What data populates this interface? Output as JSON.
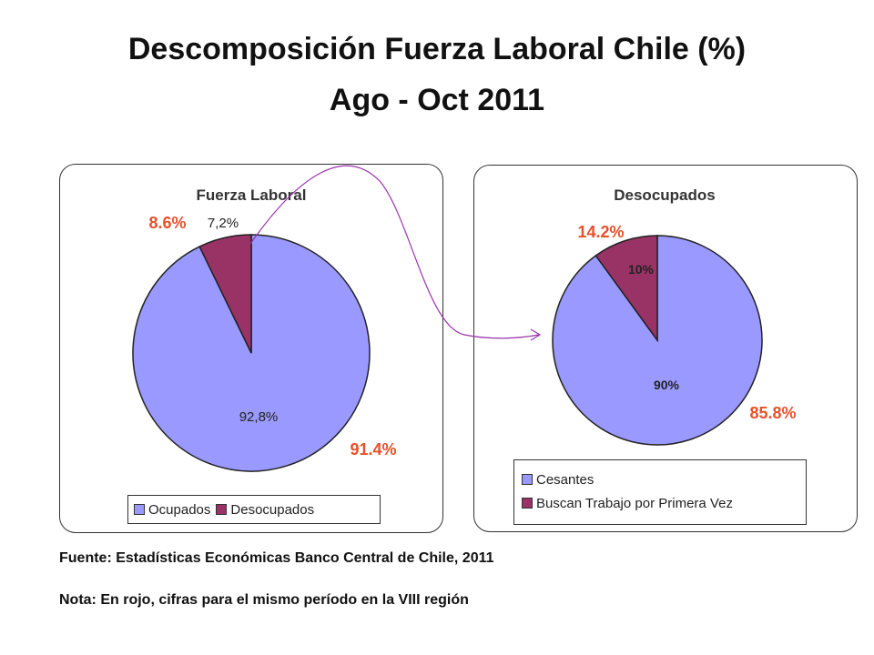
{
  "title": {
    "line1": "Descomposición Fuerza Laboral Chile (%)",
    "line2": "Ago - Oct 2011"
  },
  "colors": {
    "primary_slice": "#9999FF",
    "secondary_slice": "#993366",
    "red_label": "#E8502A",
    "connector": "#9933AA"
  },
  "chart_data": [
    {
      "type": "pie",
      "title": "Fuerza Laboral",
      "categories": [
        "Ocupados",
        "Desocupados"
      ],
      "values": [
        92.8,
        7.2
      ],
      "data_labels": [
        "92,8%",
        "7,2%"
      ],
      "comparison_labels": [
        "91.4%",
        "8.6%"
      ],
      "legend": [
        "Ocupados",
        "Desocupados"
      ],
      "legend_position": "bottom"
    },
    {
      "type": "pie",
      "title": "Desocupados",
      "categories": [
        "Cesantes",
        "Buscan Trabajo por Primera Vez"
      ],
      "values": [
        90,
        10
      ],
      "data_labels": [
        "90%",
        "10%"
      ],
      "comparison_labels": [
        "85.8%",
        "14.2%"
      ],
      "legend": [
        "Cesantes",
        "Buscan Trabajo por Primera Vez"
      ],
      "legend_position": "bottom"
    }
  ],
  "footnotes": {
    "fuente": "Fuente: Estadísticas Económicas Banco Central de Chile, 2011",
    "nota": "Nota: En rojo, cifras para el mismo período en la VIII región"
  }
}
